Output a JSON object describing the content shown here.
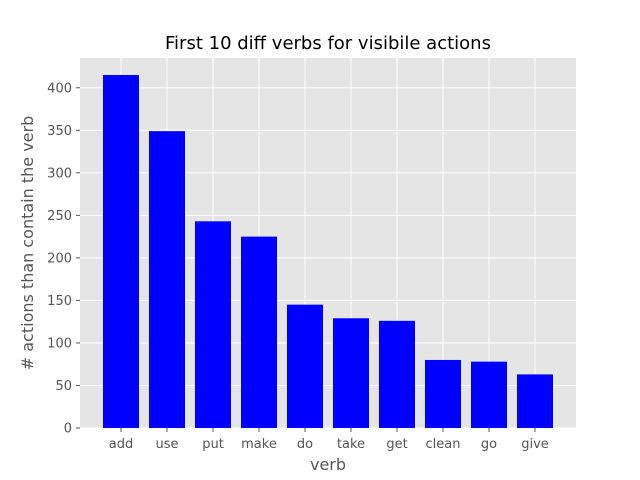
{
  "chart_data": {
    "type": "bar",
    "title": "First 10 diff verbs for visibile actions",
    "xlabel": "verb",
    "ylabel": "# actions than contain the verb",
    "categories": [
      "add",
      "use",
      "put",
      "make",
      "do",
      "take",
      "get",
      "clean",
      "go",
      "give"
    ],
    "values": [
      415,
      349,
      243,
      225,
      145,
      129,
      126,
      80,
      78,
      63
    ],
    "ylim": [
      0,
      435
    ],
    "yticks": [
      0,
      50,
      100,
      150,
      200,
      250,
      300,
      350,
      400
    ],
    "grid": true,
    "colors": {
      "bar": "#0000ff",
      "plot_background": "#e5e5e5",
      "grid": "#ffffff"
    }
  }
}
